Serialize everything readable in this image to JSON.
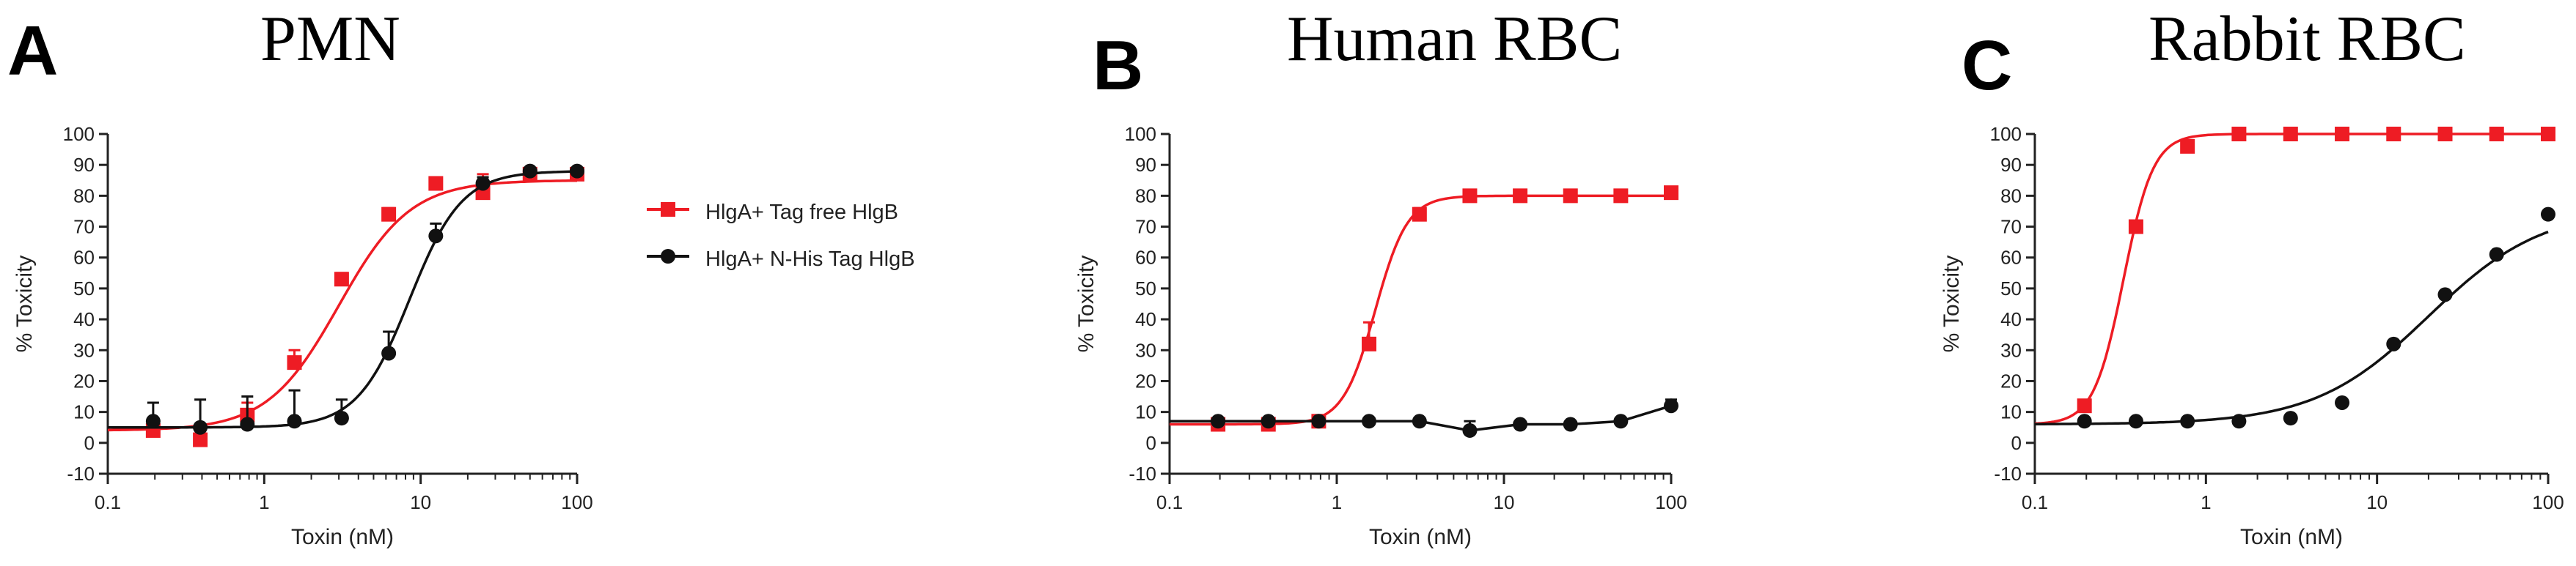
{
  "panels": [
    {
      "letter": "A",
      "title": "PMN"
    },
    {
      "letter": "B",
      "title": "Human RBC"
    },
    {
      "letter": "C",
      "title": "Rabbit RBC"
    }
  ],
  "colors": {
    "red": "#ee1c24",
    "black": "#111111",
    "axis": "#222222"
  },
  "chart_data": [
    {
      "type": "scatter",
      "title": "PMN",
      "xlabel": "Toxin (nM)",
      "ylabel": "% Toxicity",
      "xscale": "log",
      "xlim": [
        0.1,
        100
      ],
      "ylim": [
        -10,
        100
      ],
      "xticks": [
        "0.1",
        "1",
        "10",
        "100"
      ],
      "yticks": [
        "-10",
        "0",
        "10",
        "20",
        "30",
        "40",
        "50",
        "60",
        "70",
        "80",
        "90",
        "100"
      ],
      "legend_position": "right",
      "series": [
        {
          "name": "HlgA+ Tag free HlgB",
          "color": "red",
          "marker": "square",
          "x": [
            0.195,
            0.39,
            0.78,
            1.56,
            3.125,
            6.25,
            12.5,
            25,
            50,
            100
          ],
          "y": [
            4,
            1,
            9,
            26,
            53,
            74,
            84,
            81,
            87,
            87
          ],
          "err": [
            2,
            2,
            4,
            4,
            2,
            2,
            2,
            6,
            2,
            2
          ],
          "fit": {
            "bottom": 4,
            "top": 85,
            "ec50": 3.0,
            "hill": 1.9
          }
        },
        {
          "name": "HlgA+ N-His Tag HlgB",
          "color": "black",
          "marker": "circle",
          "x": [
            0.195,
            0.39,
            0.78,
            1.56,
            3.125,
            6.25,
            12.5,
            25,
            50,
            100
          ],
          "y": [
            7,
            5,
            6,
            7,
            8,
            29,
            67,
            84,
            88,
            88
          ],
          "err": [
            6,
            9,
            9,
            10,
            6,
            7,
            4,
            2,
            1,
            1
          ],
          "fit": {
            "bottom": 5,
            "top": 88,
            "ec50": 8.5,
            "hill": 2.6
          }
        }
      ]
    },
    {
      "type": "scatter",
      "title": "Human RBC",
      "xlabel": "Toxin (nM)",
      "ylabel": "% Toxicity",
      "xscale": "log",
      "xlim": [
        0.1,
        100
      ],
      "ylim": [
        -10,
        100
      ],
      "xticks": [
        "0.1",
        "1",
        "10",
        "100"
      ],
      "yticks": [
        "-10",
        "0",
        "10",
        "20",
        "30",
        "40",
        "50",
        "60",
        "70",
        "80",
        "90",
        "100"
      ],
      "series": [
        {
          "name": "HlgA+ Tag free HlgB",
          "color": "red",
          "marker": "square",
          "x": [
            0.195,
            0.39,
            0.78,
            1.56,
            3.125,
            6.25,
            12.5,
            25,
            50,
            100
          ],
          "y": [
            6,
            6,
            7,
            32,
            74,
            80,
            80,
            80,
            80,
            81
          ],
          "err": [
            1,
            1,
            1,
            7,
            2,
            1,
            1,
            1,
            1,
            1
          ],
          "fit": {
            "bottom": 6,
            "top": 80,
            "ec50": 1.7,
            "hill": 4.5
          }
        },
        {
          "name": "HlgA+ N-His Tag HlgB",
          "color": "black",
          "marker": "circle",
          "x": [
            0.195,
            0.39,
            0.78,
            1.56,
            3.125,
            6.25,
            12.5,
            25,
            50,
            100
          ],
          "y": [
            7,
            7,
            7,
            7,
            7,
            4,
            6,
            6,
            7,
            12
          ],
          "err": [
            0,
            0,
            0,
            0,
            1,
            3,
            1,
            1,
            1,
            2
          ]
        }
      ]
    },
    {
      "type": "scatter",
      "title": "Rabbit RBC",
      "xlabel": "Toxin (nM)",
      "ylabel": "% Toxicity",
      "xscale": "log",
      "xlim": [
        0.1,
        100
      ],
      "ylim": [
        -10,
        100
      ],
      "xticks": [
        "0.1",
        "1",
        "10",
        "100"
      ],
      "yticks": [
        "-10",
        "0",
        "10",
        "20",
        "30",
        "40",
        "50",
        "60",
        "70",
        "80",
        "90",
        "100"
      ],
      "series": [
        {
          "name": "HlgA+ Tag free HlgB",
          "color": "red",
          "marker": "square",
          "x": [
            0.195,
            0.39,
            0.78,
            1.56,
            3.125,
            6.25,
            12.5,
            25,
            50,
            100
          ],
          "y": [
            12,
            70,
            96,
            100,
            100,
            100,
            100,
            100,
            100,
            100
          ],
          "err": [
            0,
            0,
            0,
            0,
            0,
            0,
            0,
            0,
            0,
            0
          ],
          "fit": {
            "bottom": 6,
            "top": 100,
            "ec50": 0.33,
            "hill": 5
          }
        },
        {
          "name": "HlgA+ N-His Tag HlgB",
          "color": "black",
          "marker": "circle",
          "x": [
            0.195,
            0.39,
            0.78,
            1.56,
            3.125,
            6.25,
            12.5,
            25,
            50,
            100
          ],
          "y": [
            7,
            7,
            7,
            7,
            8,
            13,
            32,
            48,
            61,
            74
          ],
          "err": [
            0,
            0,
            0,
            0,
            0,
            0,
            0,
            0,
            0,
            0
          ],
          "fit": {
            "bottom": 6,
            "top": 76,
            "ec50": 20,
            "hill": 1.3
          }
        }
      ]
    }
  ]
}
